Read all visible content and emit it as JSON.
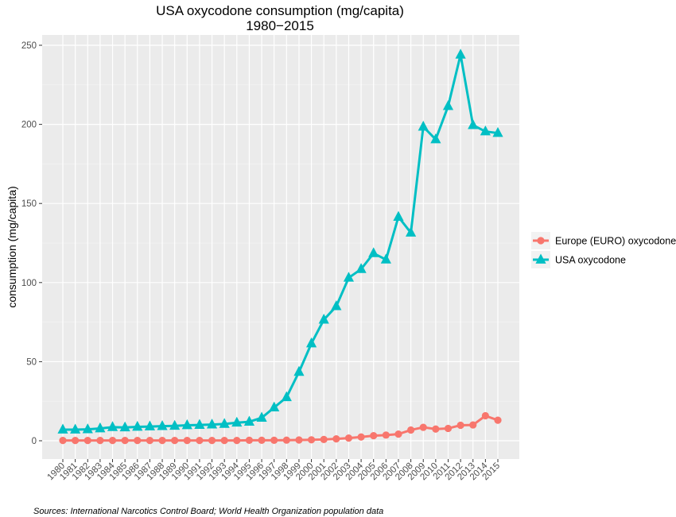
{
  "chart_data": {
    "type": "line",
    "title": "USA oxycodone consumption (mg/capita)",
    "subtitle": "1980−2015",
    "xlabel": "",
    "ylabel": "consumption (mg/capita)",
    "ylim": [
      0,
      250
    ],
    "yticks": [
      0,
      50,
      100,
      150,
      200,
      250
    ],
    "grid": true,
    "legend_position": "right",
    "categories": [
      "1980",
      "1981",
      "1982",
      "1983",
      "1984",
      "1985",
      "1986",
      "1987",
      "1988",
      "1989",
      "1990",
      "1991",
      "1992",
      "1993",
      "1994",
      "1995",
      "1996",
      "1997",
      "1998",
      "1999",
      "2000",
      "2001",
      "2002",
      "2003",
      "2004",
      "2005",
      "2006",
      "2007",
      "2008",
      "2009",
      "2010",
      "2011",
      "2012",
      "2013",
      "2014",
      "2015"
    ],
    "series": [
      {
        "name": "Europe (EURO) oxycodone",
        "color": "#f8766d",
        "marker": "circle",
        "values": [
          0.2,
          0.2,
          0.2,
          0.2,
          0.2,
          0.2,
          0.2,
          0.2,
          0.2,
          0.2,
          0.2,
          0.2,
          0.2,
          0.2,
          0.2,
          0.3,
          0.3,
          0.3,
          0.4,
          0.5,
          0.6,
          0.8,
          1.2,
          1.7,
          2.4,
          3.2,
          3.6,
          4.2,
          6.8,
          8.5,
          7.4,
          7.8,
          9.8,
          10.0,
          15.8,
          13.0
        ]
      },
      {
        "name": "USA oxycodone",
        "color": "#00bfc4",
        "marker": "triangle",
        "values": [
          7.0,
          7.0,
          7.2,
          7.8,
          8.6,
          8.4,
          8.8,
          9.0,
          9.2,
          9.4,
          9.8,
          10.0,
          10.2,
          10.6,
          11.4,
          12.0,
          14.5,
          21.0,
          27.5,
          43.5,
          61.5,
          76.5,
          85.0,
          103.0,
          108.5,
          118.5,
          114.5,
          141.5,
          131.5,
          198.5,
          190.5,
          211.5,
          244.0,
          199.5,
          195.5,
          194.5
        ]
      }
    ],
    "caption": "Sources: International Narcotics Control Board; World Health Organization population data"
  }
}
